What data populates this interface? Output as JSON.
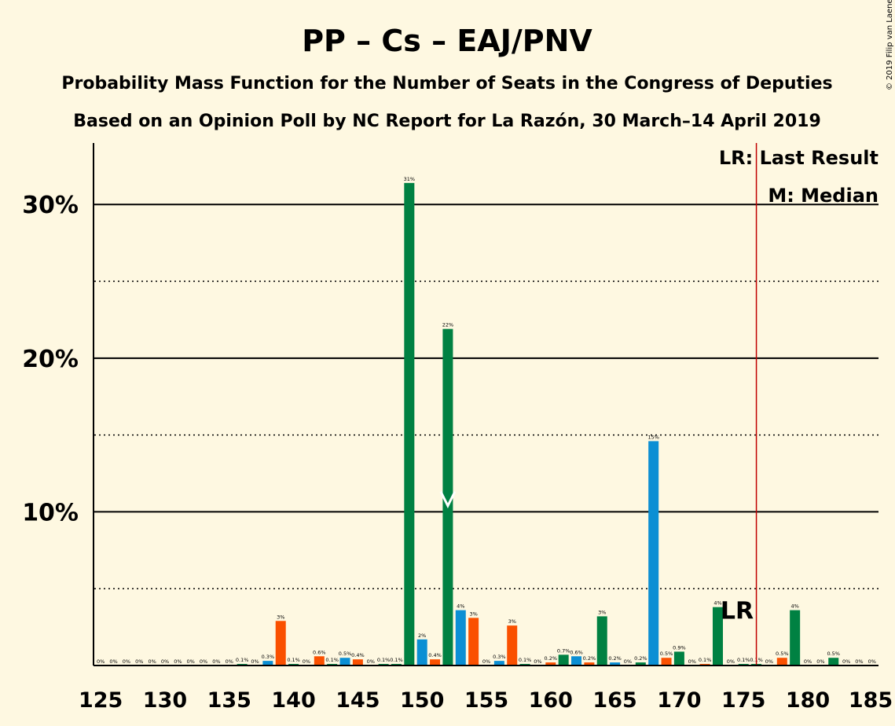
{
  "title": "PP – Cs – EAJ/PNV",
  "subtitle1": "Probability Mass Function for the Number of Seats in the Congress of Deputies",
  "subtitle2": "Based on an Opinion Poll by NC Report for La Razón, 30 March–14 April 2019",
  "copyright": "© 2019 Filip van Laenen",
  "legend": {
    "last_result": "LR: Last Result",
    "median": "M: Median"
  },
  "last_result_marker": "LR",
  "chart_data": {
    "type": "bar",
    "xlim": [
      124.5,
      185.5
    ],
    "ylim": [
      0,
      34
    ],
    "x_ticks": [
      125,
      130,
      135,
      140,
      145,
      150,
      155,
      160,
      165,
      170,
      175,
      180,
      185
    ],
    "y_ticks": [
      {
        "value": 10,
        "label": "10%"
      },
      {
        "value": 20,
        "label": "20%"
      },
      {
        "value": 30,
        "label": "30%"
      }
    ],
    "y_dotted": [
      5,
      15,
      25
    ],
    "median": 152,
    "last_result": 176,
    "colors": {
      "green": "#008142",
      "blue": "#0b8fd4",
      "orange": "#fa5000",
      "lr_line": "#c00000",
      "grid": "#000000"
    },
    "bars": [
      {
        "x": 125,
        "value": 0,
        "label": "0%",
        "color": "green"
      },
      {
        "x": 126,
        "value": 0,
        "label": "0%",
        "color": "green"
      },
      {
        "x": 127,
        "value": 0,
        "label": "0%",
        "color": "green"
      },
      {
        "x": 128,
        "value": 0,
        "label": "0%",
        "color": "green"
      },
      {
        "x": 129,
        "value": 0,
        "label": "0%",
        "color": "green"
      },
      {
        "x": 130,
        "value": 0,
        "label": "0%",
        "color": "green"
      },
      {
        "x": 131,
        "value": 0,
        "label": "0%",
        "color": "green"
      },
      {
        "x": 132,
        "value": 0,
        "label": "0%",
        "color": "green"
      },
      {
        "x": 133,
        "value": 0,
        "label": "0%",
        "color": "green"
      },
      {
        "x": 134,
        "value": 0,
        "label": "0%",
        "color": "green"
      },
      {
        "x": 135,
        "value": 0,
        "label": "0%",
        "color": "green"
      },
      {
        "x": 136,
        "value": 0.1,
        "label": "0.1%",
        "color": "green"
      },
      {
        "x": 137,
        "value": 0,
        "label": "0%",
        "color": "green"
      },
      {
        "x": 138,
        "value": 0.3,
        "label": "0.3%",
        "color": "blue"
      },
      {
        "x": 139,
        "value": 2.9,
        "label": "3%",
        "color": "orange"
      },
      {
        "x": 140,
        "value": 0.1,
        "label": "0.1%",
        "color": "green"
      },
      {
        "x": 141,
        "value": 0,
        "label": "0%",
        "color": "green"
      },
      {
        "x": 142,
        "value": 0.6,
        "label": "0.6%",
        "color": "orange"
      },
      {
        "x": 143,
        "value": 0.1,
        "label": "0.1%",
        "color": "green"
      },
      {
        "x": 144,
        "value": 0.5,
        "label": "0.5%",
        "color": "blue"
      },
      {
        "x": 145,
        "value": 0.4,
        "label": "0.4%",
        "color": "orange"
      },
      {
        "x": 146,
        "value": 0,
        "label": "0%",
        "color": "green"
      },
      {
        "x": 147,
        "value": 0.1,
        "label": "0.1%",
        "color": "green"
      },
      {
        "x": 148,
        "value": 0.1,
        "label": "0.1%",
        "color": "green"
      },
      {
        "x": 149,
        "value": 31.4,
        "label": "31%",
        "color": "green"
      },
      {
        "x": 150,
        "value": 1.7,
        "label": "2%",
        "color": "blue"
      },
      {
        "x": 151,
        "value": 0.4,
        "label": "0.4%",
        "color": "orange"
      },
      {
        "x": 152,
        "value": 21.9,
        "label": "22%",
        "color": "green"
      },
      {
        "x": 153,
        "value": 3.6,
        "label": "4%",
        "color": "blue"
      },
      {
        "x": 154,
        "value": 3.1,
        "label": "3%",
        "color": "orange"
      },
      {
        "x": 155,
        "value": 0,
        "label": "0%",
        "color": "green"
      },
      {
        "x": 156,
        "value": 0.3,
        "label": "0.3%",
        "color": "blue"
      },
      {
        "x": 157,
        "value": 2.6,
        "label": "3%",
        "color": "orange"
      },
      {
        "x": 158,
        "value": 0.1,
        "label": "0.1%",
        "color": "green"
      },
      {
        "x": 159,
        "value": 0,
        "label": "0%",
        "color": "green"
      },
      {
        "x": 160,
        "value": 0.2,
        "label": "0.2%",
        "color": "orange"
      },
      {
        "x": 161,
        "value": 0.7,
        "label": "0.7%",
        "color": "green"
      },
      {
        "x": 162,
        "value": 0.6,
        "label": "0.6%",
        "color": "blue"
      },
      {
        "x": 163,
        "value": 0.2,
        "label": "0.2%",
        "color": "orange"
      },
      {
        "x": 164,
        "value": 3.2,
        "label": "3%",
        "color": "green"
      },
      {
        "x": 165,
        "value": 0.2,
        "label": "0.2%",
        "color": "blue"
      },
      {
        "x": 166,
        "value": 0,
        "label": "0%",
        "color": "green"
      },
      {
        "x": 167,
        "value": 0.2,
        "label": "0.2%",
        "color": "green"
      },
      {
        "x": 168,
        "value": 14.6,
        "label": "15%",
        "color": "blue"
      },
      {
        "x": 169,
        "value": 0.5,
        "label": "0.5%",
        "color": "orange"
      },
      {
        "x": 170,
        "value": 0.9,
        "label": "0.9%",
        "color": "green"
      },
      {
        "x": 171,
        "value": 0,
        "label": "0%",
        "color": "green"
      },
      {
        "x": 172,
        "value": 0.1,
        "label": "0.1%",
        "color": "orange"
      },
      {
        "x": 173,
        "value": 3.8,
        "label": "4%",
        "color": "green"
      },
      {
        "x": 174,
        "value": 0,
        "label": "0%",
        "color": "green"
      },
      {
        "x": 175,
        "value": 0.1,
        "label": "0.1%",
        "color": "green"
      },
      {
        "x": 176,
        "value": 0.1,
        "label": "0.1%",
        "color": "green"
      },
      {
        "x": 177,
        "value": 0,
        "label": "0%",
        "color": "green"
      },
      {
        "x": 178,
        "value": 0.5,
        "label": "0.5%",
        "color": "orange"
      },
      {
        "x": 179,
        "value": 3.6,
        "label": "4%",
        "color": "green"
      },
      {
        "x": 180,
        "value": 0,
        "label": "0%",
        "color": "green"
      },
      {
        "x": 181,
        "value": 0,
        "label": "0%",
        "color": "green"
      },
      {
        "x": 182,
        "value": 0.5,
        "label": "0.5%",
        "color": "green"
      },
      {
        "x": 183,
        "value": 0,
        "label": "0%",
        "color": "green"
      },
      {
        "x": 184,
        "value": 0,
        "label": "0%",
        "color": "green"
      },
      {
        "x": 185,
        "value": 0,
        "label": "0%",
        "color": "green"
      }
    ]
  }
}
